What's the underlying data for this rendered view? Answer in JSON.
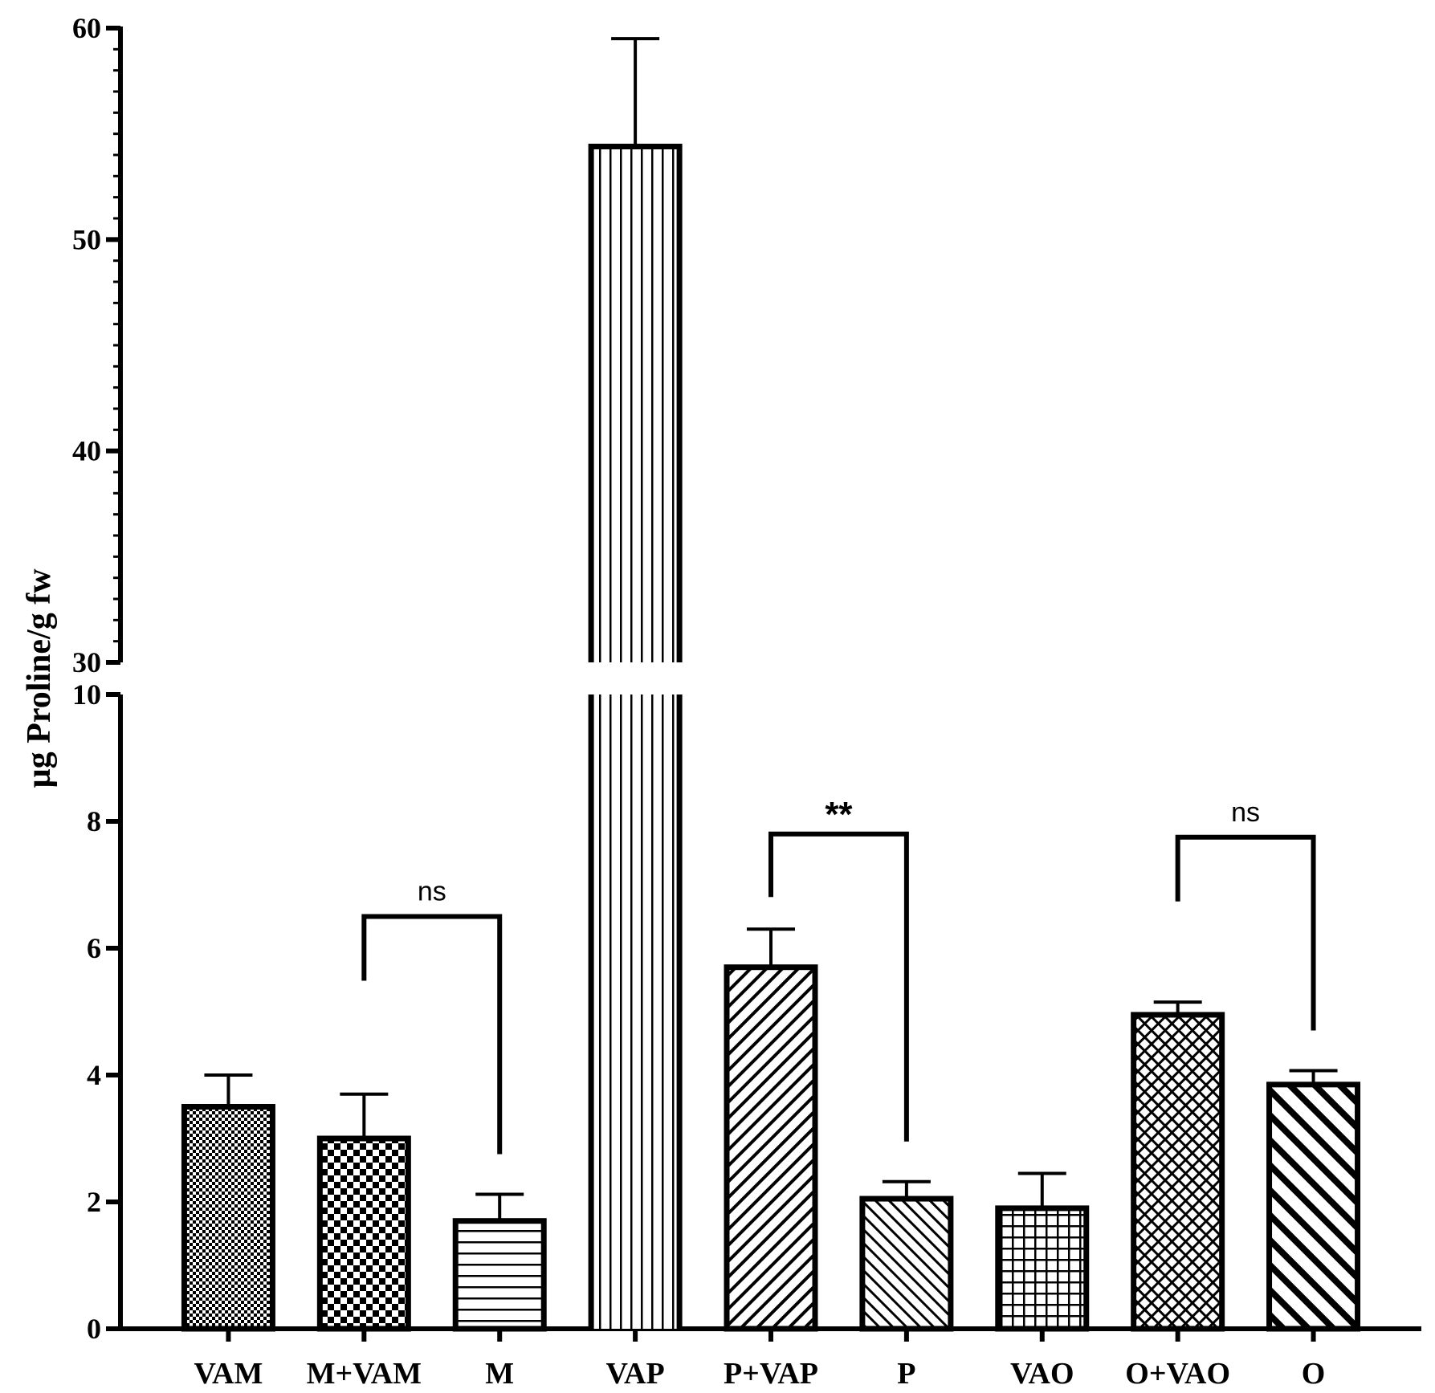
{
  "chart_data": {
    "type": "bar",
    "ylabel": "µg Proline/g fw",
    "xlabel": "",
    "title": "",
    "y_axis_break": {
      "lower": [
        0,
        10
      ],
      "upper": [
        30,
        60
      ]
    },
    "lower_ticks": [
      "0",
      "2",
      "4",
      "6",
      "8",
      "10"
    ],
    "upper_ticks": [
      "30",
      "40",
      "50",
      "60"
    ],
    "categories": [
      "VAM",
      "M+VAM",
      "M",
      "VAP",
      "P+VAP",
      "P",
      "VAO",
      "O+VAO",
      "O"
    ],
    "values": [
      3.5,
      3.0,
      1.7,
      54.4,
      5.7,
      2.05,
      1.9,
      4.95,
      3.85
    ],
    "errors": [
      0.5,
      0.7,
      0.42,
      5.1,
      0.6,
      0.27,
      0.55,
      0.2,
      0.22
    ],
    "patterns": [
      "fine-dots",
      "checker",
      "horizontal",
      "vertical",
      "diagonal-up",
      "diagonal-down",
      "grid",
      "crosshatch",
      "wide-diagonal-down"
    ],
    "significance": [
      {
        "from": "M+VAM",
        "to": "M",
        "label": "ns",
        "level": 6.5
      },
      {
        "from": "P+VAP",
        "to": "P",
        "label": "**",
        "level": 7.8
      },
      {
        "from": "O+VAO",
        "to": "O",
        "label": "ns",
        "level": 7.75
      }
    ]
  }
}
